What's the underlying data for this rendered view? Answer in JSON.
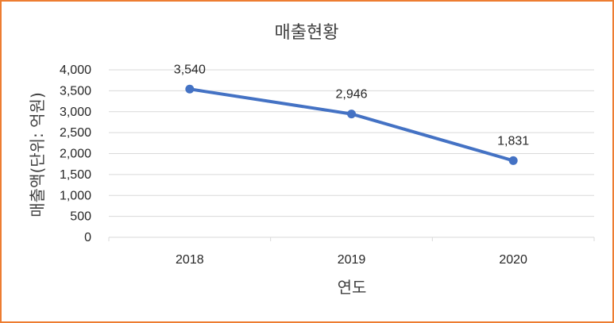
{
  "chart_data": {
    "type": "line",
    "title": "매출현황",
    "xlabel": "연도",
    "ylabel": "매출액(단위: 억원)",
    "categories": [
      "2018",
      "2019",
      "2020"
    ],
    "series": [
      {
        "values": [
          3540,
          2946,
          1831
        ],
        "color": "#4472c4"
      }
    ],
    "data_labels": [
      "3,540",
      "2,946",
      "1,831"
    ],
    "y_ticks": [
      "0",
      "500",
      "1,000",
      "1,500",
      "2,000",
      "2,500",
      "3,000",
      "3,500",
      "4,000"
    ],
    "ylim": [
      0,
      4000
    ],
    "grid": true,
    "legend": "none"
  },
  "colors": {
    "frame_border": "#ed7d31",
    "line": "#4472c4",
    "grid": "#d9d9d9"
  }
}
